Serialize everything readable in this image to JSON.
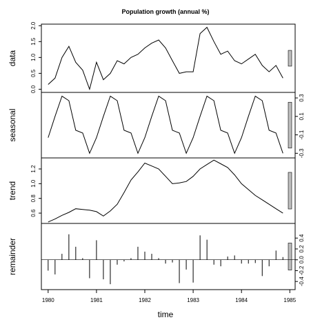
{
  "chart_data": {
    "type": "stl",
    "title": "Population growth (annual %)",
    "x_label": "time",
    "xlim": [
      1979.86,
      1985.11
    ],
    "xticks": [
      1980,
      1981,
      1982,
      1983,
      1984,
      1985
    ],
    "x": [
      1980,
      1980.143,
      1980.286,
      1980.429,
      1980.571,
      1980.714,
      1980.857,
      1981,
      1981.143,
      1981.286,
      1981.429,
      1981.571,
      1981.714,
      1981.857,
      1982,
      1982.143,
      1982.286,
      1982.429,
      1982.571,
      1982.714,
      1982.857,
      1983,
      1983.143,
      1983.286,
      1983.429,
      1983.571,
      1983.714,
      1983.857,
      1984,
      1984.143,
      1984.286,
      1984.429,
      1984.571,
      1984.714,
      1984.857
    ],
    "panels": [
      {
        "name": "data",
        "type": "line",
        "tick_side": "left",
        "ylim": [
          -0.1,
          2.05
        ],
        "yticks": [
          {
            "value": 0,
            "label": "0.0"
          },
          0.5,
          {
            "value": 1,
            "label": "1.0"
          },
          1.5,
          {
            "value": 2,
            "label": "2.0"
          }
        ],
        "values": [
          0.15,
          0.35,
          1.0,
          1.35,
          0.85,
          0.6,
          0.0,
          0.85,
          0.3,
          0.5,
          0.9,
          0.8,
          1.0,
          1.1,
          1.3,
          1.45,
          1.55,
          1.3,
          0.9,
          0.5,
          0.55,
          0.55,
          1.75,
          1.95,
          1.5,
          1.1,
          1.2,
          0.9,
          0.8,
          0.95,
          1.1,
          0.75,
          0.55,
          0.75,
          0.35
        ]
      },
      {
        "name": "seasonal",
        "type": "line",
        "tick_side": "right",
        "ylim": [
          -0.35,
          0.36
        ],
        "yticks": [
          0.3,
          0.1,
          -0.1,
          -0.3
        ],
        "values": [
          -0.13,
          0.1,
          0.32,
          0.27,
          -0.05,
          -0.08,
          -0.3,
          -0.13,
          0.1,
          0.32,
          0.27,
          -0.05,
          -0.08,
          -0.3,
          -0.13,
          0.1,
          0.32,
          0.27,
          -0.05,
          -0.08,
          -0.3,
          -0.13,
          0.1,
          0.32,
          0.27,
          -0.05,
          -0.08,
          -0.3,
          -0.13,
          0.1,
          0.32,
          0.27,
          -0.05,
          -0.08,
          -0.3
        ]
      },
      {
        "name": "trend",
        "type": "line",
        "tick_side": "left",
        "ylim": [
          0.46,
          1.35
        ],
        "yticks": [
          0.6,
          0.8,
          {
            "value": 1,
            "label": "1.0"
          },
          1.2
        ],
        "values": [
          0.48,
          0.52,
          0.57,
          0.61,
          0.66,
          0.65,
          0.64,
          0.62,
          0.56,
          0.63,
          0.72,
          0.88,
          1.05,
          1.16,
          1.28,
          1.24,
          1.2,
          1.1,
          1.0,
          1.01,
          1.03,
          1.1,
          1.2,
          1.26,
          1.32,
          1.27,
          1.22,
          1.12,
          1.0,
          0.92,
          0.84,
          0.78,
          0.72,
          0.66,
          0.6
        ]
      },
      {
        "name": "remainder",
        "type": "spike",
        "tick_side": "right",
        "ylim": [
          -0.55,
          0.67
        ],
        "yticks": [
          0.4,
          0.2,
          {
            "value": 0,
            "label": "0.0"
          },
          -0.2,
          -0.4
        ],
        "values": [
          -0.2,
          -0.27,
          0.11,
          0.47,
          0.24,
          0.03,
          -0.34,
          0.36,
          -0.36,
          -0.45,
          -0.09,
          -0.03,
          0.03,
          0.24,
          0.15,
          0.11,
          0.03,
          -0.07,
          -0.05,
          -0.43,
          -0.18,
          -0.42,
          0.45,
          0.37,
          -0.09,
          -0.12,
          0.06,
          0.08,
          -0.07,
          -0.07,
          -0.06,
          -0.3,
          -0.12,
          0.17,
          0.05
        ]
      }
    ]
  }
}
